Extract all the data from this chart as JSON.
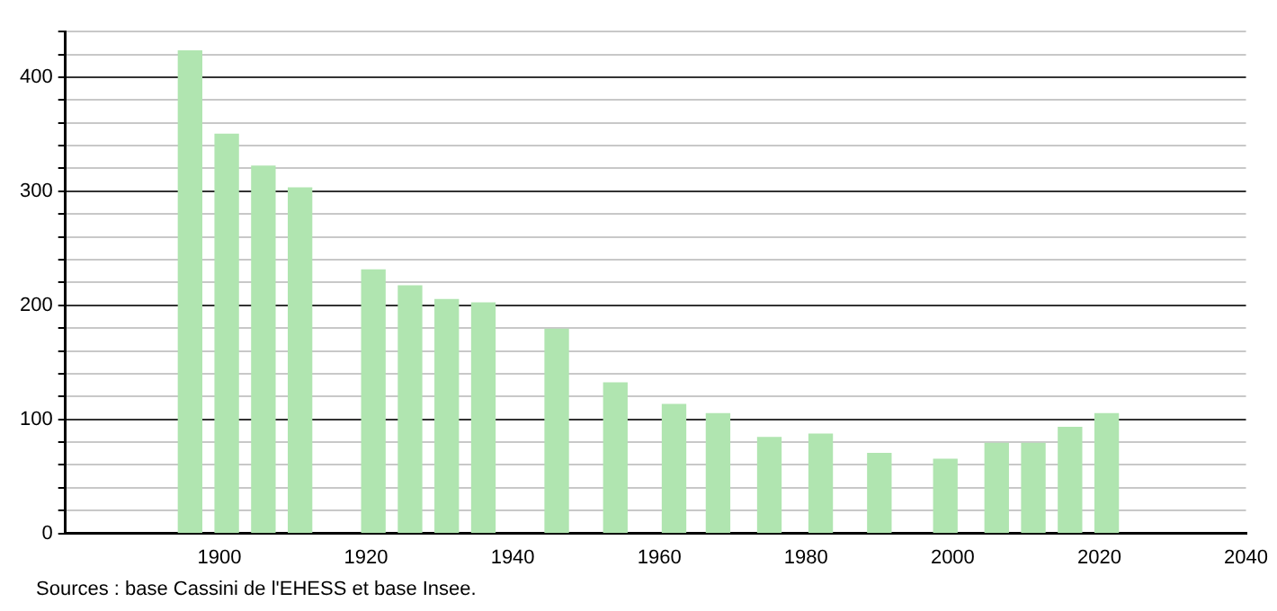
{
  "chart_data": {
    "type": "bar",
    "x": [
      1896,
      1901,
      1906,
      1911,
      1921,
      1926,
      1931,
      1936,
      1946,
      1954,
      1962,
      1968,
      1975,
      1982,
      1990,
      1999,
      2006,
      2011,
      2016,
      2021
    ],
    "values": [
      423,
      350,
      322,
      303,
      231,
      217,
      205,
      202,
      179,
      132,
      113,
      105,
      84,
      87,
      70,
      65,
      79,
      79,
      93,
      105
    ],
    "color": "#b0e5b0",
    "xlim": [
      1879,
      2040
    ],
    "xticks": [
      1900,
      1920,
      1940,
      1960,
      1980,
      2000,
      2020,
      2040
    ],
    "ylim": [
      0,
      440
    ],
    "yticks": [
      0,
      {
        "value": 20,
        "label": null
      },
      {
        "value": 40,
        "label": null
      },
      {
        "value": 60,
        "label": null
      },
      {
        "value": 80,
        "label": null
      },
      100,
      {
        "value": 120,
        "label": null
      },
      {
        "value": 140,
        "label": null
      },
      {
        "value": 160,
        "label": null
      },
      {
        "value": 180,
        "label": null
      },
      200,
      {
        "value": 220,
        "label": null
      },
      {
        "value": 240,
        "label": null
      },
      {
        "value": 260,
        "label": null
      },
      {
        "value": 280,
        "label": null
      },
      300,
      {
        "value": 320,
        "label": null
      },
      {
        "value": 340,
        "label": null
      },
      {
        "value": 360,
        "label": null
      },
      {
        "value": 380,
        "label": null
      },
      400,
      {
        "value": 420,
        "label": null
      },
      {
        "value": 440,
        "label": null
      }
    ],
    "grid": "y",
    "annotations": [
      "Sources : base Cassini de l'EHESS et base Insee."
    ]
  }
}
